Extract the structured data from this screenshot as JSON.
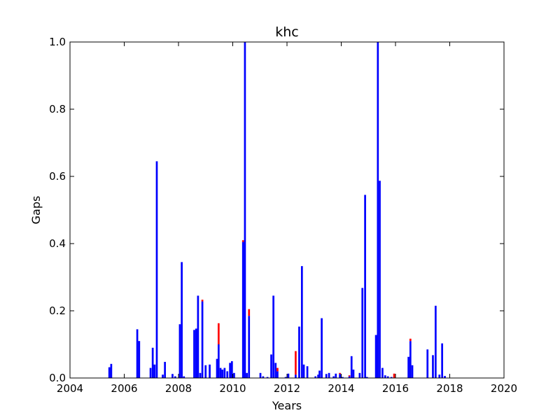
{
  "chart_data": {
    "type": "bar",
    "title": "khc",
    "xlabel": "Years",
    "ylabel": "Gaps",
    "xlim": [
      2004,
      2020
    ],
    "ylim": [
      0,
      1.0
    ],
    "xticks": [
      "2004",
      "2006",
      "2008",
      "2010",
      "2012",
      "2014",
      "2016",
      "2018",
      "2020"
    ],
    "yticks": [
      "0.0",
      "0.2",
      "0.4",
      "0.6",
      "0.8",
      "1.0"
    ],
    "grid": false,
    "legend": "none",
    "bar_width_years": 0.07,
    "colors": {
      "blue": "#0000ff",
      "red": "#ff0000"
    },
    "series": [
      {
        "color": "#0000ff",
        "x": [
          2005.45,
          2005.52,
          2006.48,
          2006.55,
          2006.97,
          2007.05,
          2007.12,
          2007.2,
          2007.42,
          2007.5,
          2007.78,
          2007.88,
          2008.05,
          2008.12,
          2008.2,
          2008.58,
          2008.65,
          2008.72,
          2008.8,
          2008.88,
          2009.0,
          2009.15,
          2009.42,
          2009.48,
          2009.55,
          2009.62,
          2009.7,
          2009.8,
          2009.9,
          2009.97,
          2010.05,
          2010.38,
          2010.45,
          2010.52,
          2010.6,
          2011.02,
          2011.12,
          2011.28,
          2011.42,
          2011.5,
          2011.58,
          2011.65,
          2011.95,
          2012.05,
          2012.32,
          2012.45,
          2012.55,
          2012.62,
          2012.75,
          2013.05,
          2013.15,
          2013.2,
          2013.28,
          2013.45,
          2013.55,
          2013.72,
          2013.8,
          2013.95,
          2014.05,
          2014.3,
          2014.38,
          2014.45,
          2014.68,
          2014.78,
          2014.88,
          2014.95,
          2015.28,
          2015.35,
          2015.42,
          2015.52,
          2015.62,
          2015.72,
          2015.85,
          2016.48,
          2016.55,
          2016.62,
          2017.18,
          2017.38,
          2017.48,
          2017.62,
          2017.72,
          2017.82
        ],
        "values": [
          0.032,
          0.042,
          0.145,
          0.11,
          0.03,
          0.09,
          0.04,
          0.645,
          0.01,
          0.048,
          0.012,
          0.005,
          0.16,
          0.345,
          0.005,
          0.143,
          0.147,
          0.245,
          0.015,
          0.228,
          0.038,
          0.04,
          0.057,
          0.1,
          0.03,
          0.025,
          0.03,
          0.02,
          0.045,
          0.05,
          0.015,
          0.405,
          1.0,
          0.015,
          0.185,
          0.015,
          0.005,
          0.003,
          0.07,
          0.245,
          0.045,
          0.02,
          0.003,
          0.013,
          0.01,
          0.153,
          0.333,
          0.04,
          0.035,
          0.005,
          0.01,
          0.022,
          0.178,
          0.012,
          0.015,
          0.005,
          0.013,
          0.012,
          0.003,
          0.005,
          0.065,
          0.025,
          0.015,
          0.268,
          0.545,
          0.003,
          0.128,
          1.0,
          0.587,
          0.03,
          0.008,
          0.005,
          0.003,
          0.063,
          0.11,
          0.038,
          0.085,
          0.068,
          0.215,
          0.01,
          0.103,
          0.006
        ]
      },
      {
        "color": "#ff0000",
        "x": [
          2008.88,
          2009.48,
          2010.38,
          2010.6,
          2011.65,
          2012.32,
          2013.95,
          2014.3,
          2015.95,
          2016.55
        ],
        "values": [
          0.005,
          0.063,
          0.005,
          0.02,
          0.01,
          0.07,
          0.003,
          0.003,
          0.013,
          0.007
        ],
        "stacked_on_blue": true
      }
    ]
  }
}
